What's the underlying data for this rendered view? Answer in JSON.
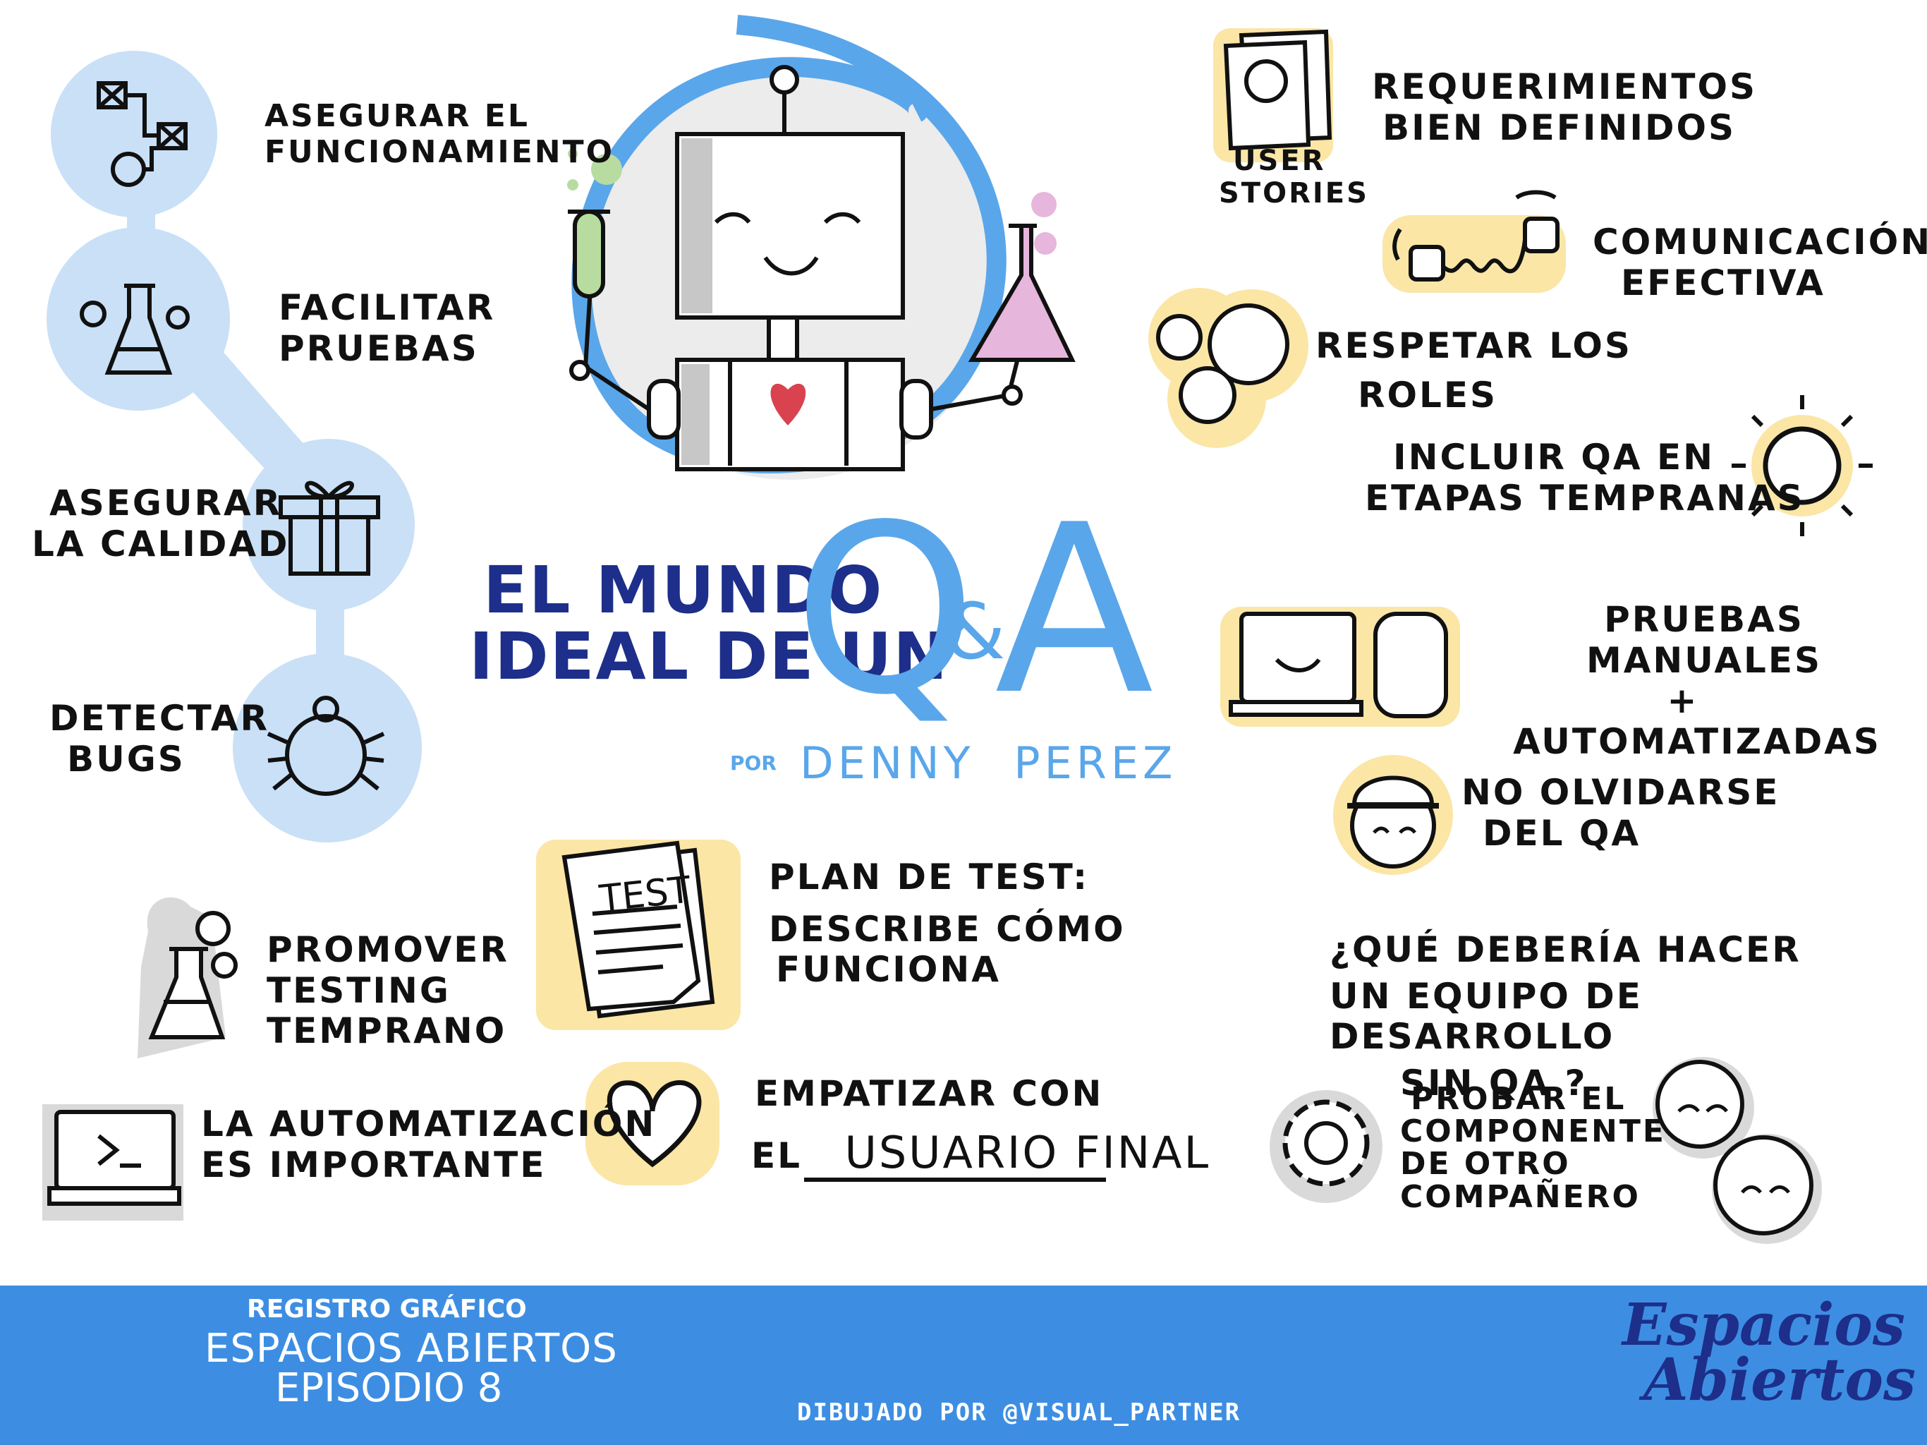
{
  "left_items": [
    {
      "lines": [
        "ASEGURAR EL",
        "FUNCIONAMIENTO"
      ],
      "icon": "workflow-icon"
    },
    {
      "lines": [
        "FACILITAR",
        "PRUEBAS"
      ],
      "icon": "flask-icon"
    },
    {
      "lines": [
        "ASEGURAR",
        "LA CALIDAD"
      ],
      "icon": "gift-icon"
    },
    {
      "lines": [
        "DETECTAR",
        "BUGS"
      ],
      "icon": "bug-icon"
    },
    {
      "lines": [
        "PROMOVER",
        "TESTING",
        "TEMPRANO"
      ],
      "icon": "flask-icon"
    },
    {
      "lines": [
        "LA AUTOMATIZACIÓN",
        "ES IMPORTANTE"
      ],
      "icon": "terminal-icon"
    }
  ],
  "title": {
    "line1": "EL MUNDO",
    "line2": "IDEAL DE UN",
    "q": "Q",
    "amp": "&",
    "a": "A"
  },
  "byline": {
    "por": "POR",
    "author": "DENNY PEREZ"
  },
  "center_items": {
    "plan_title": "PLAN DE TEST:",
    "plan_lines": [
      "DESCRIBE CÓMO",
      "FUNCIONA"
    ],
    "doc_label": "TEST",
    "empathy_line1": "EMPATIZAR CON",
    "empathy_el": "EL",
    "empathy_underlined": "USUARIO FINAL"
  },
  "right_items": [
    {
      "lines": [
        "REQUERIMIENTOS",
        "BIEN DEFINIDOS"
      ],
      "caption": [
        "USER",
        "STORIES"
      ],
      "icon": "user-stories-icon"
    },
    {
      "lines": [
        "COMUNICACIÓN",
        "EFECTIVA"
      ],
      "icon": "tin-can-phone-icon"
    },
    {
      "lines": [
        "RESPETAR LOS",
        "ROLES"
      ],
      "icon": "circles-faces-icon"
    },
    {
      "lines": [
        "INCLUIR QA EN",
        "ETAPAS TEMPRANAS"
      ],
      "icon": "sun-icon"
    },
    {
      "lines": [
        "PRUEBAS MANUALES",
        "+",
        "AUTOMATIZADAS"
      ],
      "icon": "laptop-phone-icon"
    },
    {
      "lines": [
        "NO OLVIDARSE",
        "DEL QA"
      ],
      "icon": "hardhat-face-icon"
    }
  ],
  "question": {
    "lines": [
      "¿QUÉ DEBERÍA HACER",
      "UN EQUIPO DE DESARROLLO",
      "SIN QA ?"
    ]
  },
  "answer": {
    "lines": [
      "PROBAR EL",
      "COMPONENTE",
      "DE OTRO",
      "COMPAÑERO"
    ]
  },
  "footer": {
    "kicker": "REGISTRO GRÁFICO",
    "series": "ESPACIOS ABIERTOS",
    "episode": "EPISODIO 8",
    "credit": "DIBUJADO POR @VISUAL_PARTNER",
    "brand_line1": "Espacios",
    "brand_line2": "Abiertos"
  },
  "colors": {
    "light_blue": "#c9e0f7",
    "mid_blue": "#3d8ee2",
    "dark_navy": "#1d2f8a",
    "qa_blue": "#5aa6ea",
    "yellow_highlight": "#fbe6a6",
    "heart_red": "#d8434f",
    "flask_pink": "#e7b6dc",
    "tube_green": "#b8dca0"
  }
}
